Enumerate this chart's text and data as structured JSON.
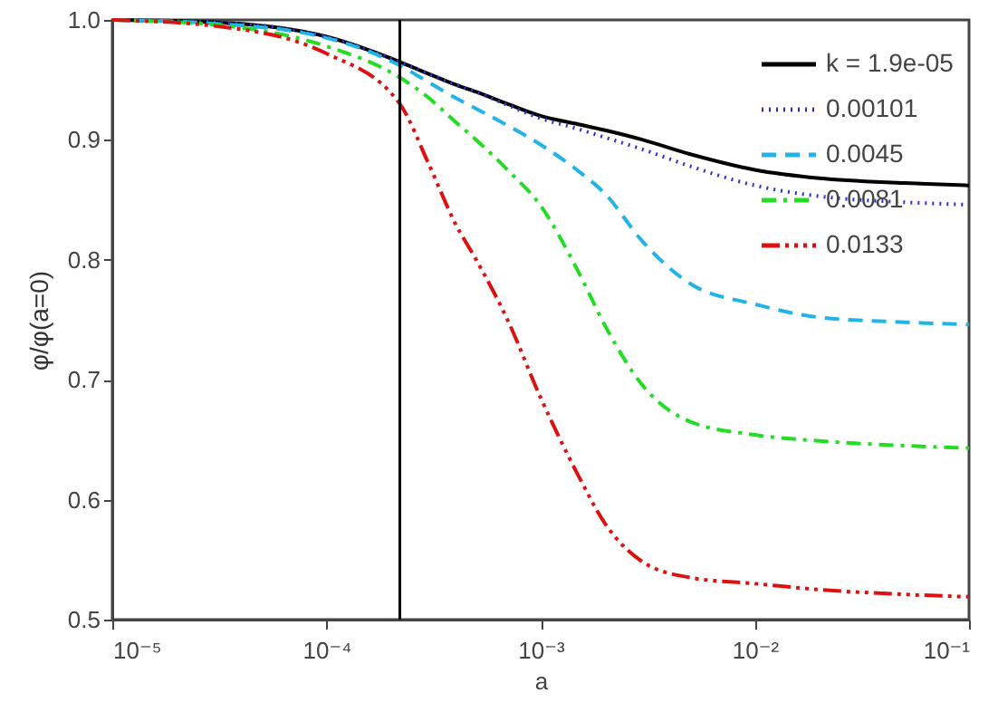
{
  "chart_data": {
    "type": "line",
    "xlabel": "a",
    "ylabel": "φ/φ(a=0)",
    "x": [
      1e-05,
      3e-05,
      0.0001,
      0.00022,
      0.0003,
      0.0004,
      0.0005,
      0.0007,
      0.001,
      0.0015,
      0.002,
      0.003,
      0.005,
      0.01,
      0.02,
      0.05,
      0.1
    ],
    "series": [
      {
        "name": "k = 1.9e-05",
        "color": "#000000",
        "line_style": "solid",
        "values": [
          1.0,
          0.998,
          0.986,
          0.965,
          0.955,
          0.946,
          0.94,
          0.93,
          0.92,
          0.913,
          0.908,
          0.9,
          0.888,
          0.875,
          0.868,
          0.864,
          0.862
        ]
      },
      {
        "name": "0.00101",
        "color": "#3333cc",
        "line_style": "dotted",
        "values": [
          1.0,
          0.998,
          0.986,
          0.965,
          0.955,
          0.946,
          0.94,
          0.929,
          0.918,
          0.909,
          0.902,
          0.892,
          0.878,
          0.862,
          0.853,
          0.848,
          0.846
        ]
      },
      {
        "name": "0.0045",
        "color": "#22b4e6",
        "line_style": "dashed",
        "values": [
          1.0,
          0.997,
          0.985,
          0.962,
          0.948,
          0.935,
          0.926,
          0.912,
          0.896,
          0.874,
          0.855,
          0.815,
          0.78,
          0.763,
          0.752,
          0.748,
          0.746
        ]
      },
      {
        "name": "0.0081",
        "color": "#22dd22",
        "line_style": "dashdot",
        "values": [
          1.0,
          0.996,
          0.978,
          0.952,
          0.935,
          0.915,
          0.9,
          0.875,
          0.845,
          0.79,
          0.745,
          0.695,
          0.665,
          0.654,
          0.649,
          0.645,
          0.643
        ]
      },
      {
        "name": "0.0133",
        "color": "#dd1111",
        "line_style": "dashdotdotdot",
        "values": [
          1.0,
          0.995,
          0.972,
          0.93,
          0.88,
          0.83,
          0.8,
          0.75,
          0.685,
          0.62,
          0.58,
          0.548,
          0.535,
          0.53,
          0.525,
          0.521,
          0.519
        ]
      }
    ],
    "xlim": [
      1e-05,
      0.1
    ],
    "log": "x",
    "xticks": [
      {
        "value": 1e-05,
        "label": "10⁻⁵"
      },
      {
        "value": 0.0001,
        "label": "10⁻⁴"
      },
      {
        "value": 0.001,
        "label": "10⁻³"
      },
      {
        "value": 0.01,
        "label": "10⁻²"
      },
      {
        "value": 0.1,
        "label": "10⁻¹"
      }
    ],
    "ylim": [
      0.5,
      1.0
    ],
    "yticks": [
      0.5,
      0.6,
      0.7,
      0.8,
      0.9,
      {
        "value": 1.0,
        "label": "1.0"
      }
    ],
    "ref_lines": [
      {
        "axis": "x",
        "value": 0.00022,
        "color": "#000000"
      }
    ],
    "grid": false,
    "legend": "top right"
  }
}
